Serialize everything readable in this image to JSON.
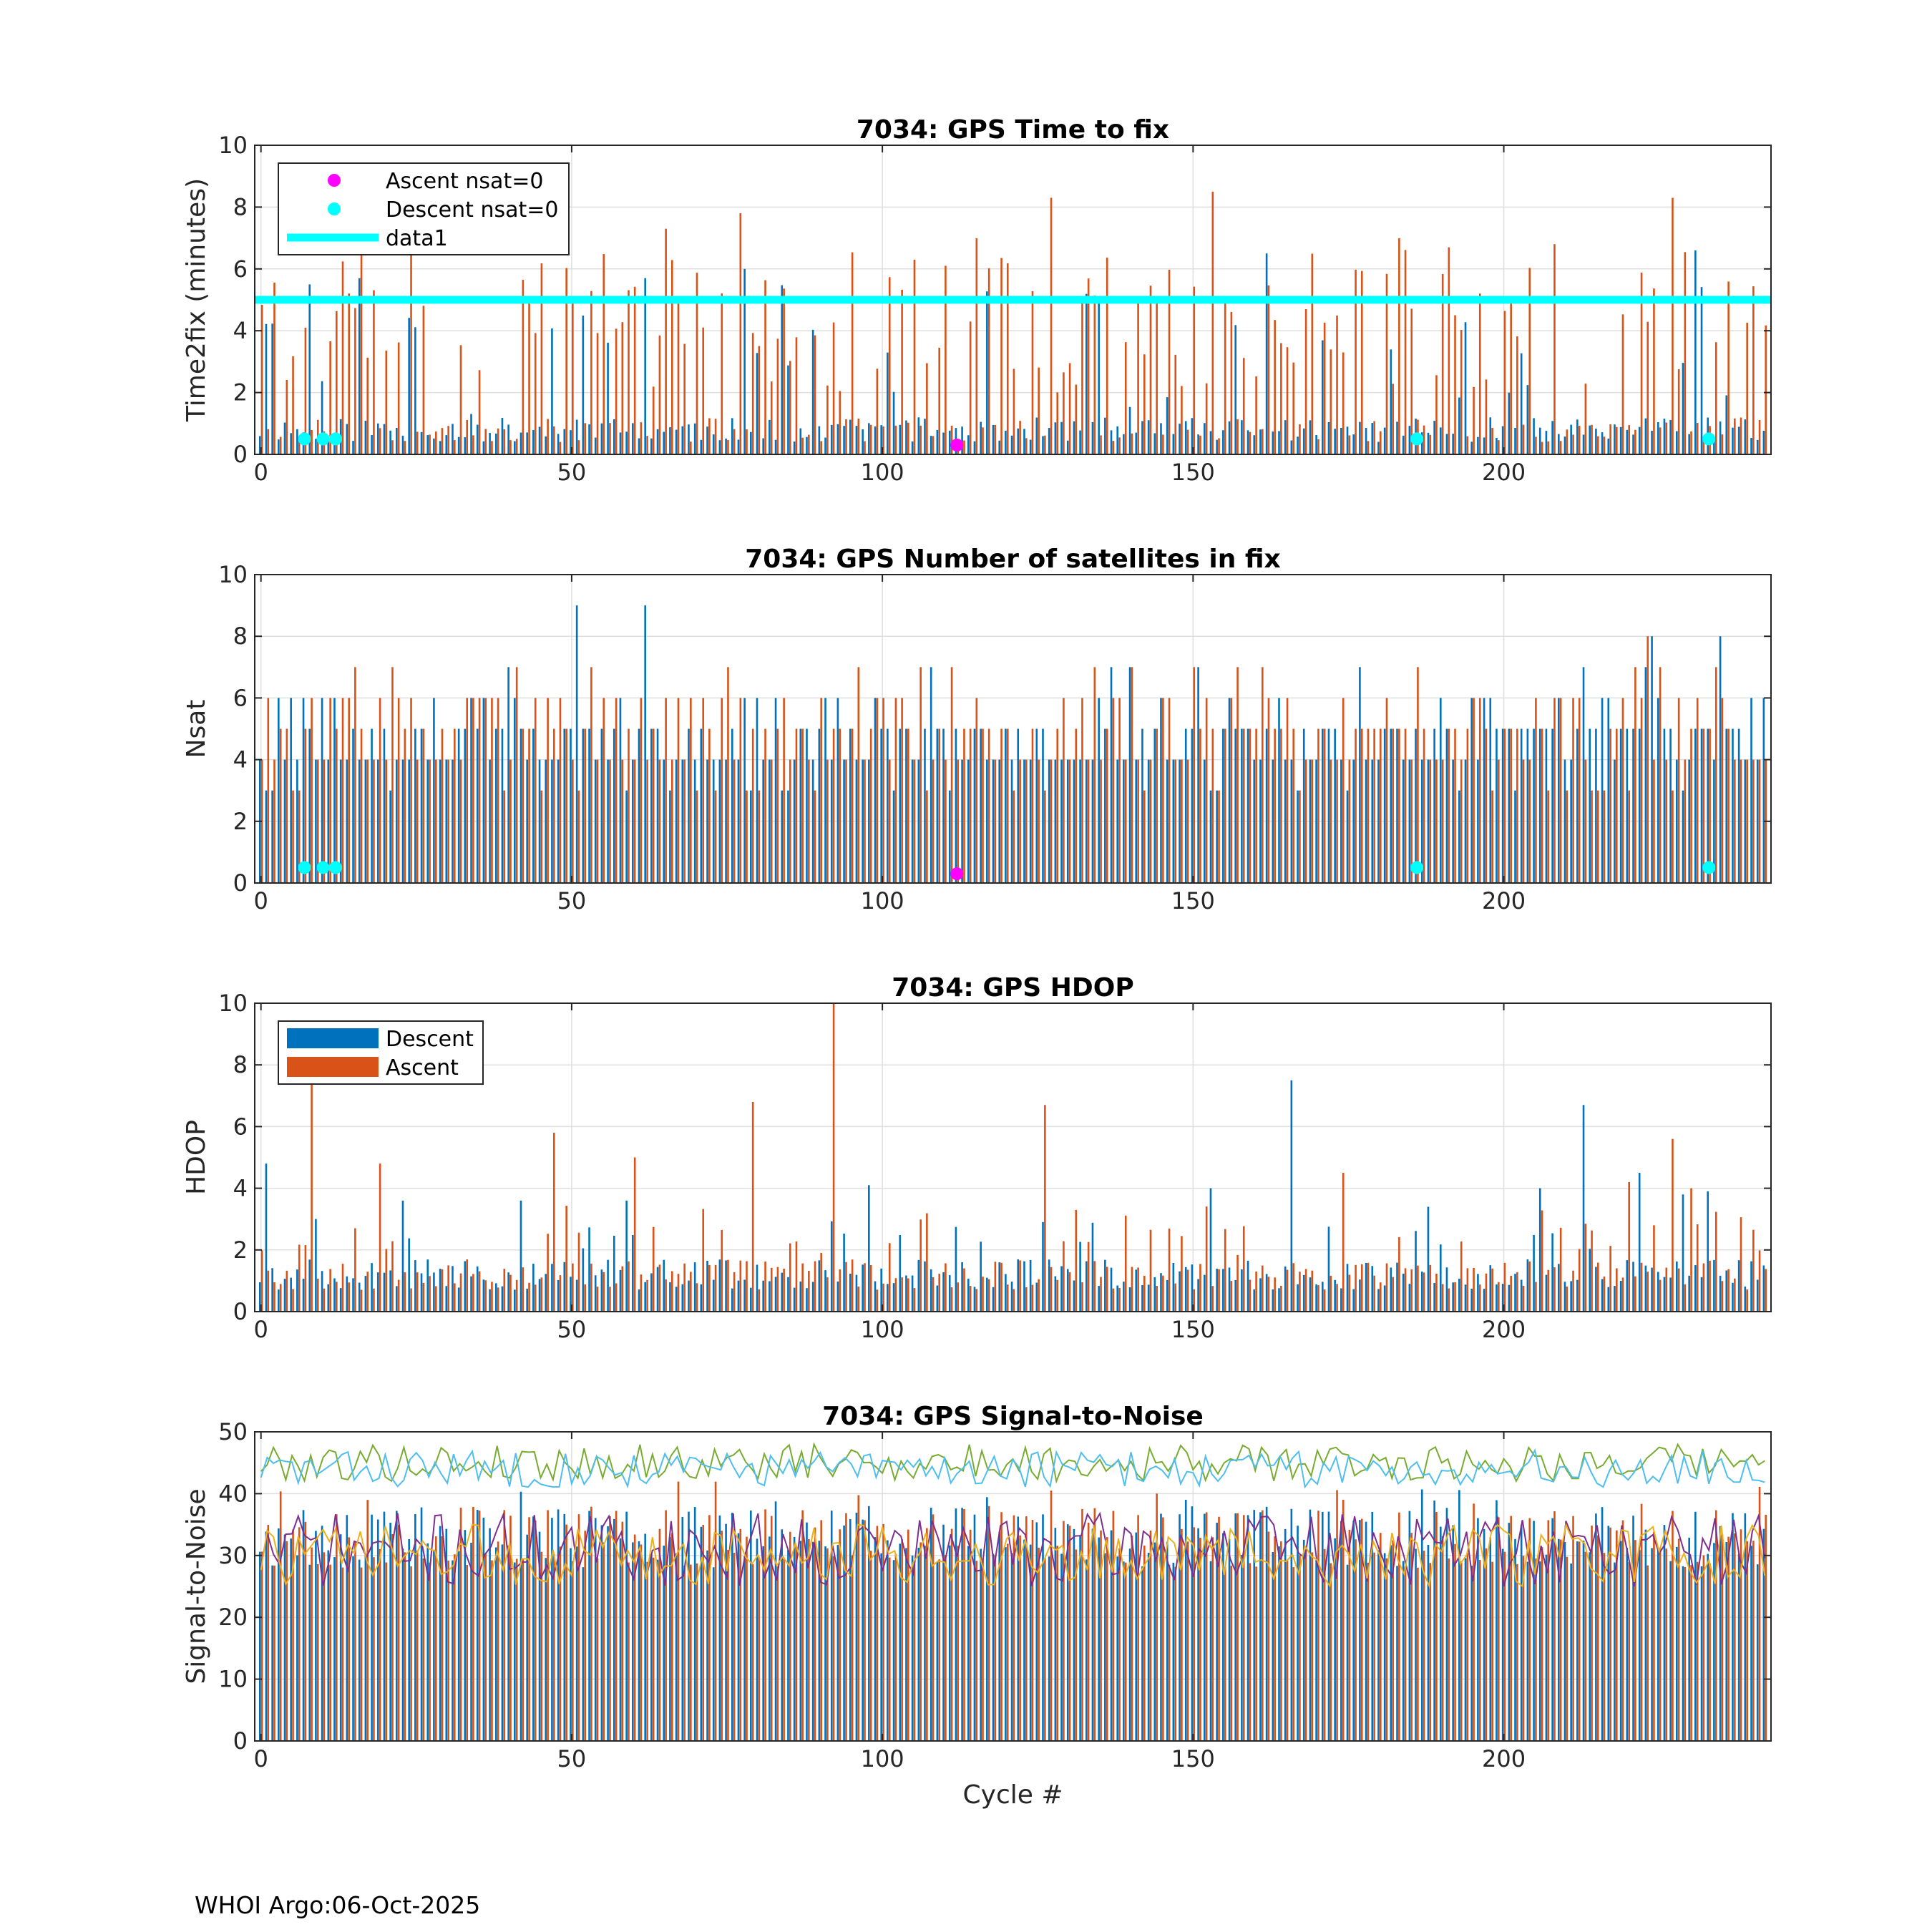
{
  "footer": "WHOI Argo:06-Oct-2025",
  "colors": {
    "descent": "#0072BD",
    "ascent": "#D95319",
    "magenta": "#FF00FF",
    "cyan": "#00FFFF",
    "snr": [
      "#7E2F8E",
      "#EDB120",
      "#77AC30",
      "#4DBEEE"
    ]
  },
  "chart_data": [
    {
      "id": "time2fix",
      "type": "bar",
      "title": "7034: GPS Time to fix",
      "xlabel": "",
      "ylabel": "Time2fix (minutes)",
      "xlim": [
        -1,
        243
      ],
      "ylim": [
        0,
        10
      ],
      "xticks": [
        0,
        50,
        100,
        150,
        200
      ],
      "yticks": [
        0,
        2,
        4,
        6,
        8,
        10
      ],
      "grid": true,
      "legend": {
        "position": "top-left",
        "entries": [
          "Ascent nsat=0",
          "Descent nsat=0",
          "data1"
        ]
      },
      "hline": {
        "name": "data1",
        "y": 5
      },
      "ascent_zero_cycles": [
        112
      ],
      "descent_zero_cycles": [
        7,
        10,
        12,
        186,
        233
      ],
      "marker_y": 0.3,
      "series": [
        {
          "name": "Descent",
          "seed": 11,
          "base": 0.8,
          "spread": 0.4,
          "spike_prob": 0.15,
          "spike_min": 1,
          "spike_max": 5.5,
          "spikes": [
            [
              8,
              5.5
            ],
            [
              16,
              5.7
            ],
            [
              62,
              5.7
            ],
            [
              78,
              6
            ],
            [
              162,
              6.5
            ],
            [
              231,
              6.6
            ]
          ]
        },
        {
          "name": "Ascent",
          "seed": 23,
          "base": 0.8,
          "spread": 0.4,
          "spike_prob": 0.6,
          "spike_min": 2,
          "spike_max": 7,
          "spikes": [
            [
              16,
              6.9
            ],
            [
              65,
              7.3
            ],
            [
              77,
              7.8
            ],
            [
              127,
              8.3
            ],
            [
              153,
              8.5
            ],
            [
              227,
              8.3
            ],
            [
              208,
              6.8
            ],
            [
              191,
              6.7
            ]
          ]
        }
      ]
    },
    {
      "id": "nsat",
      "type": "bar",
      "title": "7034: GPS Number of satellites in fix",
      "xlabel": "",
      "ylabel": "Nsat",
      "xlim": [
        -1,
        243
      ],
      "ylim": [
        0,
        10
      ],
      "xticks": [
        0,
        50,
        100,
        150,
        200
      ],
      "yticks": [
        0,
        2,
        4,
        6,
        8,
        10
      ],
      "grid": true,
      "ascent_zero_cycles": [
        112
      ],
      "descent_zero_cycles": [
        7,
        10,
        12,
        186,
        233
      ],
      "marker_y": 0.3,
      "series": [
        {
          "name": "Descent",
          "seed": 31,
          "base": 4.5,
          "spread": 1.2,
          "spike_prob": 0.05,
          "spike_min": 6,
          "spike_max": 7,
          "integer": true,
          "spikes": [
            [
              51,
              9
            ],
            [
              62,
              9
            ],
            [
              224,
              8
            ],
            [
              235,
              8
            ],
            [
              40,
              7
            ],
            [
              108,
              7
            ],
            [
              137,
              7
            ],
            [
              140,
              7
            ],
            [
              177,
              7
            ],
            [
              223,
              7
            ]
          ]
        },
        {
          "name": "Ascent",
          "seed": 37,
          "base": 4.5,
          "spread": 1.4,
          "spike_prob": 0.08,
          "spike_min": 6,
          "spike_max": 7,
          "integer": true,
          "spikes": [
            [
              21,
              7
            ],
            [
              41,
              7
            ],
            [
              53,
              7
            ],
            [
              106,
              7
            ],
            [
              111,
              7
            ],
            [
              150,
              7
            ],
            [
              157,
              7
            ],
            [
              186,
              7
            ],
            [
              223,
              8
            ],
            [
              225,
              7
            ],
            [
              234,
              7
            ]
          ]
        }
      ]
    },
    {
      "id": "hdop",
      "type": "bar",
      "title": "7034: GPS HDOP",
      "xlabel": "",
      "ylabel": "HDOP",
      "xlim": [
        -1,
        243
      ],
      "ylim": [
        0,
        10
      ],
      "xticks": [
        0,
        50,
        100,
        150,
        200
      ],
      "yticks": [
        0,
        2,
        4,
        6,
        8,
        10
      ],
      "grid": true,
      "legend": {
        "position": "top-left",
        "entries": [
          "Descent",
          "Ascent"
        ]
      },
      "series": [
        {
          "name": "Descent",
          "seed": 41,
          "base": 1.2,
          "spread": 0.5,
          "spike_prob": 0.12,
          "spike_min": 1.8,
          "spike_max": 3.2,
          "spikes": [
            [
              1,
              4.8
            ],
            [
              23,
              3.6
            ],
            [
              42,
              3.6
            ],
            [
              59,
              3.6
            ],
            [
              98,
              4.1
            ],
            [
              166,
              7.5
            ],
            [
              213,
              6.7
            ],
            [
              222,
              4.5
            ],
            [
              206,
              4.0
            ],
            [
              153,
              4.0
            ],
            [
              188,
              3.4
            ],
            [
              229,
              3.8
            ],
            [
              233,
              3.9
            ]
          ]
        },
        {
          "name": "Ascent",
          "seed": 53,
          "base": 1.2,
          "spread": 0.5,
          "spike_prob": 0.15,
          "spike_min": 1.8,
          "spike_max": 3.5,
          "spikes": [
            [
              8,
              7.4
            ],
            [
              19,
              4.8
            ],
            [
              47,
              5.8
            ],
            [
              60,
              5.0
            ],
            [
              79,
              6.8
            ],
            [
              92,
              10
            ],
            [
              126,
              6.7
            ],
            [
              174,
              4.5
            ],
            [
              220,
              4.2
            ],
            [
              227,
              5.6
            ],
            [
              230,
              4.0
            ],
            [
              8,
              7.4
            ]
          ]
        }
      ]
    },
    {
      "id": "snr",
      "type": "bar+line",
      "title": "7034: GPS Signal-to-Noise",
      "xlabel": "Cycle #",
      "ylabel": "Signal-to-Noise",
      "xlim": [
        -1,
        243
      ],
      "ylim": [
        0,
        50
      ],
      "xticks": [
        0,
        50,
        100,
        150,
        200
      ],
      "yticks": [
        0,
        10,
        20,
        30,
        40,
        50
      ],
      "grid": true,
      "series": [
        {
          "name": "Descent",
          "seed": 61,
          "base": 33,
          "spread": 5,
          "spike_prob": 0.05,
          "spike_min": 38,
          "spike_max": 42
        },
        {
          "name": "Ascent",
          "seed": 67,
          "base": 33,
          "spread": 5,
          "spike_prob": 0.05,
          "spike_min": 38,
          "spike_max": 42
        }
      ],
      "lines": [
        {
          "name": "snr-line-1",
          "seed": 71,
          "base": 31,
          "spread": 6
        },
        {
          "name": "snr-line-2",
          "seed": 73,
          "base": 30,
          "spread": 5
        },
        {
          "name": "snr-line-3",
          "seed": 79,
          "base": 45,
          "spread": 3
        },
        {
          "name": "snr-line-4",
          "seed": 83,
          "base": 44,
          "spread": 3
        }
      ]
    }
  ]
}
